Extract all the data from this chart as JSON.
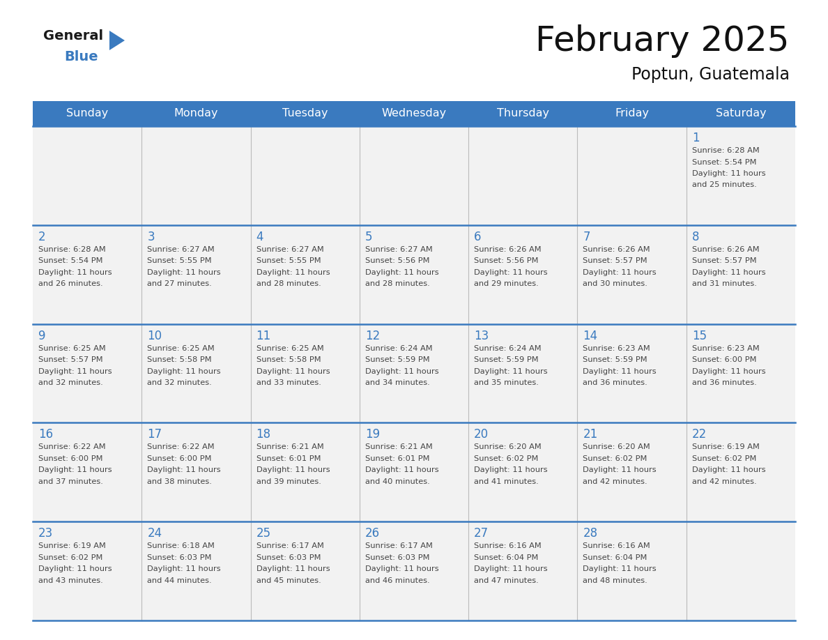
{
  "title": "February 2025",
  "subtitle": "Poptun, Guatemala",
  "header_color": "#3a7abf",
  "header_text_color": "#ffffff",
  "day_names": [
    "Sunday",
    "Monday",
    "Tuesday",
    "Wednesday",
    "Thursday",
    "Friday",
    "Saturday"
  ],
  "background_color": "#ffffff",
  "cell_bg_color": "#f2f2f2",
  "border_color": "#3a7abf",
  "logo_color1": "#1a1a1a",
  "logo_color2": "#3a7abf",
  "logo_triangle_color": "#3a7abf",
  "days": [
    {
      "day": 1,
      "row": 0,
      "col": 6,
      "sunrise": "6:28 AM",
      "sunset": "5:54 PM",
      "dl_min": "25"
    },
    {
      "day": 2,
      "row": 1,
      "col": 0,
      "sunrise": "6:28 AM",
      "sunset": "5:54 PM",
      "dl_min": "26"
    },
    {
      "day": 3,
      "row": 1,
      "col": 1,
      "sunrise": "6:27 AM",
      "sunset": "5:55 PM",
      "dl_min": "27"
    },
    {
      "day": 4,
      "row": 1,
      "col": 2,
      "sunrise": "6:27 AM",
      "sunset": "5:55 PM",
      "dl_min": "28"
    },
    {
      "day": 5,
      "row": 1,
      "col": 3,
      "sunrise": "6:27 AM",
      "sunset": "5:56 PM",
      "dl_min": "28"
    },
    {
      "day": 6,
      "row": 1,
      "col": 4,
      "sunrise": "6:26 AM",
      "sunset": "5:56 PM",
      "dl_min": "29"
    },
    {
      "day": 7,
      "row": 1,
      "col": 5,
      "sunrise": "6:26 AM",
      "sunset": "5:57 PM",
      "dl_min": "30"
    },
    {
      "day": 8,
      "row": 1,
      "col": 6,
      "sunrise": "6:26 AM",
      "sunset": "5:57 PM",
      "dl_min": "31"
    },
    {
      "day": 9,
      "row": 2,
      "col": 0,
      "sunrise": "6:25 AM",
      "sunset": "5:57 PM",
      "dl_min": "32"
    },
    {
      "day": 10,
      "row": 2,
      "col": 1,
      "sunrise": "6:25 AM",
      "sunset": "5:58 PM",
      "dl_min": "32"
    },
    {
      "day": 11,
      "row": 2,
      "col": 2,
      "sunrise": "6:25 AM",
      "sunset": "5:58 PM",
      "dl_min": "33"
    },
    {
      "day": 12,
      "row": 2,
      "col": 3,
      "sunrise": "6:24 AM",
      "sunset": "5:59 PM",
      "dl_min": "34"
    },
    {
      "day": 13,
      "row": 2,
      "col": 4,
      "sunrise": "6:24 AM",
      "sunset": "5:59 PM",
      "dl_min": "35"
    },
    {
      "day": 14,
      "row": 2,
      "col": 5,
      "sunrise": "6:23 AM",
      "sunset": "5:59 PM",
      "dl_min": "36"
    },
    {
      "day": 15,
      "row": 2,
      "col": 6,
      "sunrise": "6:23 AM",
      "sunset": "6:00 PM",
      "dl_min": "36"
    },
    {
      "day": 16,
      "row": 3,
      "col": 0,
      "sunrise": "6:22 AM",
      "sunset": "6:00 PM",
      "dl_min": "37"
    },
    {
      "day": 17,
      "row": 3,
      "col": 1,
      "sunrise": "6:22 AM",
      "sunset": "6:00 PM",
      "dl_min": "38"
    },
    {
      "day": 18,
      "row": 3,
      "col": 2,
      "sunrise": "6:21 AM",
      "sunset": "6:01 PM",
      "dl_min": "39"
    },
    {
      "day": 19,
      "row": 3,
      "col": 3,
      "sunrise": "6:21 AM",
      "sunset": "6:01 PM",
      "dl_min": "40"
    },
    {
      "day": 20,
      "row": 3,
      "col": 4,
      "sunrise": "6:20 AM",
      "sunset": "6:02 PM",
      "dl_min": "41"
    },
    {
      "day": 21,
      "row": 3,
      "col": 5,
      "sunrise": "6:20 AM",
      "sunset": "6:02 PM",
      "dl_min": "42"
    },
    {
      "day": 22,
      "row": 3,
      "col": 6,
      "sunrise": "6:19 AM",
      "sunset": "6:02 PM",
      "dl_min": "42"
    },
    {
      "day": 23,
      "row": 4,
      "col": 0,
      "sunrise": "6:19 AM",
      "sunset": "6:02 PM",
      "dl_min": "43"
    },
    {
      "day": 24,
      "row": 4,
      "col": 1,
      "sunrise": "6:18 AM",
      "sunset": "6:03 PM",
      "dl_min": "44"
    },
    {
      "day": 25,
      "row": 4,
      "col": 2,
      "sunrise": "6:17 AM",
      "sunset": "6:03 PM",
      "dl_min": "45"
    },
    {
      "day": 26,
      "row": 4,
      "col": 3,
      "sunrise": "6:17 AM",
      "sunset": "6:03 PM",
      "dl_min": "46"
    },
    {
      "day": 27,
      "row": 4,
      "col": 4,
      "sunrise": "6:16 AM",
      "sunset": "6:04 PM",
      "dl_min": "47"
    },
    {
      "day": 28,
      "row": 4,
      "col": 5,
      "sunrise": "6:16 AM",
      "sunset": "6:04 PM",
      "dl_min": "48"
    }
  ]
}
